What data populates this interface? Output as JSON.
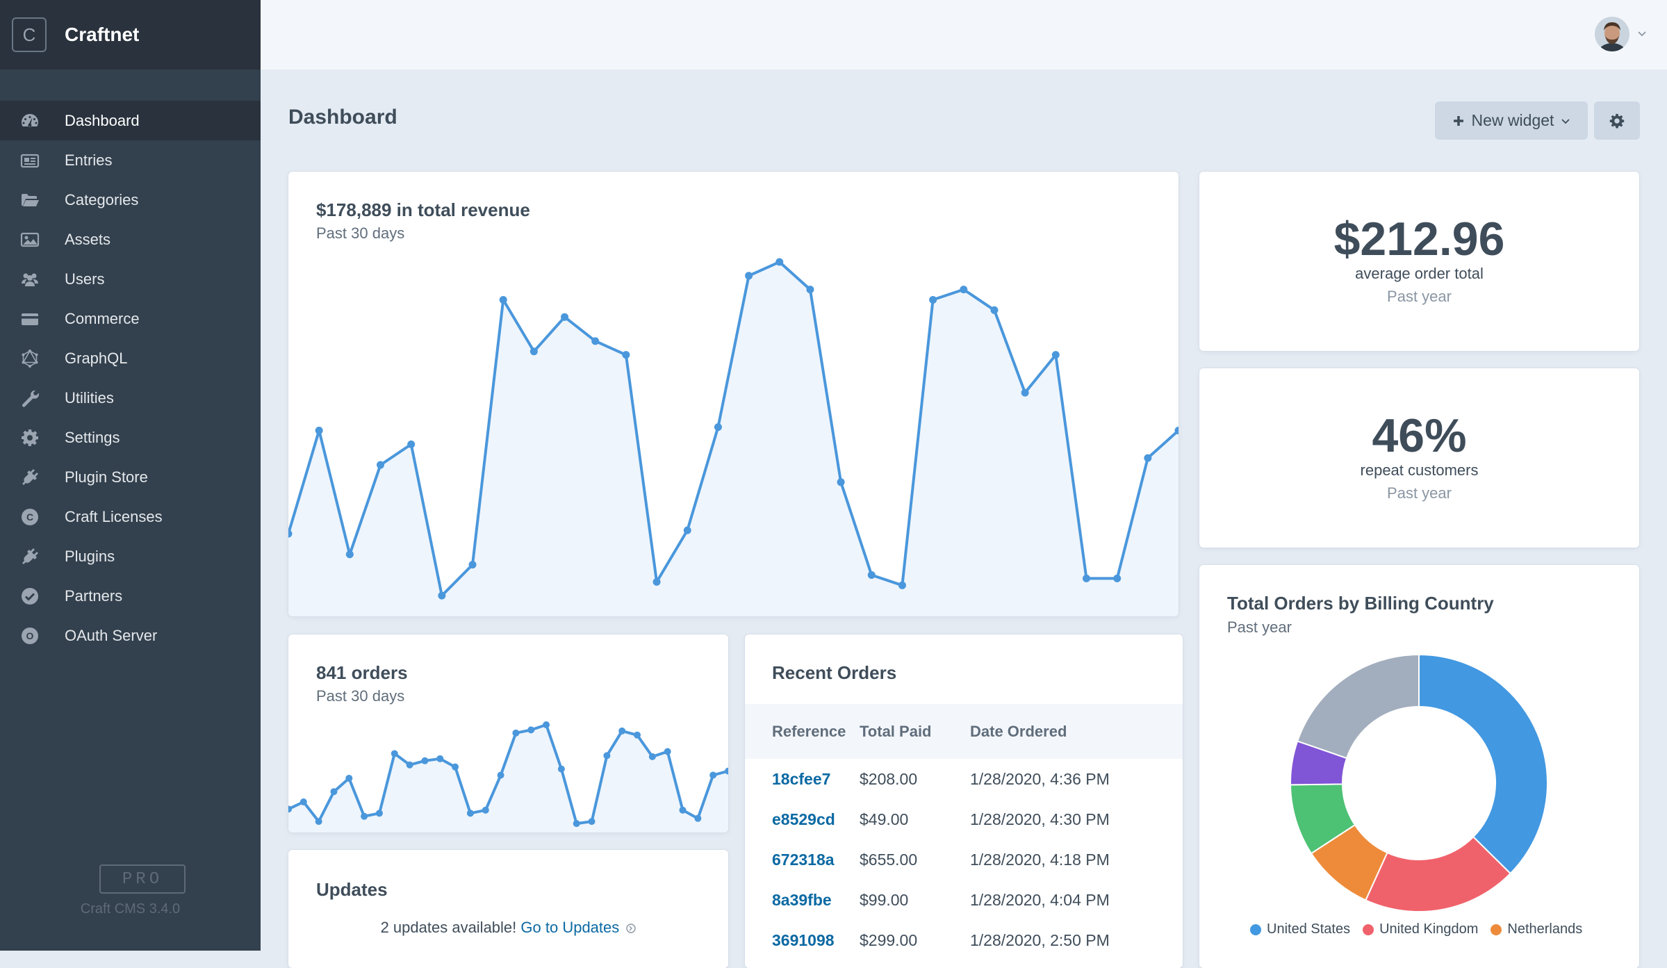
{
  "app": {
    "name": "Craftnet",
    "logo_letter": "C",
    "edition_badge": "PRO",
    "version": "Craft CMS 3.4.0"
  },
  "sidebar": {
    "items": [
      {
        "label": "Dashboard",
        "icon": "gauge-icon",
        "active": true
      },
      {
        "label": "Entries",
        "icon": "newspaper-icon"
      },
      {
        "label": "Categories",
        "icon": "folder-open-icon"
      },
      {
        "label": "Assets",
        "icon": "image-icon"
      },
      {
        "label": "Users",
        "icon": "users-icon"
      },
      {
        "label": "Commerce",
        "icon": "credit-card-icon"
      },
      {
        "label": "GraphQL",
        "icon": "graphql-icon"
      },
      {
        "label": "Utilities",
        "icon": "wrench-icon"
      },
      {
        "label": "Settings",
        "icon": "gear-icon"
      },
      {
        "label": "Plugin Store",
        "icon": "plug-icon"
      },
      {
        "label": "Craft Licenses",
        "icon": "craft-c-icon"
      },
      {
        "label": "Plugins",
        "icon": "plug-icon"
      },
      {
        "label": "Partners",
        "icon": "check-circle-icon"
      },
      {
        "label": "OAuth Server",
        "icon": "oauth-o-icon"
      }
    ]
  },
  "header": {
    "title": "Dashboard",
    "new_widget_label": "New widget",
    "new_widget_icon": "plus-icon",
    "settings_icon": "gear-icon"
  },
  "widgets": {
    "revenue": {
      "title": "$178,889 in total revenue",
      "period": "Past 30 days"
    },
    "avg_order": {
      "value": "$212.96",
      "label": "average order total",
      "period": "Past year"
    },
    "repeat": {
      "value": "46%",
      "label": "repeat customers",
      "period": "Past year"
    },
    "orders": {
      "title": "841 orders",
      "period": "Past 30 days"
    },
    "recent_orders": {
      "title": "Recent Orders",
      "columns": [
        "Reference",
        "Total Paid",
        "Date Ordered"
      ],
      "rows": [
        {
          "ref": "18cfee7",
          "total": "$208.00",
          "date": "1/28/2020, 4:36 PM"
        },
        {
          "ref": "e8529cd",
          "total": "$49.00",
          "date": "1/28/2020, 4:30 PM"
        },
        {
          "ref": "672318a",
          "total": "$655.00",
          "date": "1/28/2020, 4:18 PM"
        },
        {
          "ref": "8a39fbe",
          "total": "$99.00",
          "date": "1/28/2020, 4:04 PM"
        },
        {
          "ref": "3691098",
          "total": "$299.00",
          "date": "1/28/2020, 2:50 PM"
        }
      ]
    },
    "updates": {
      "title": "Updates",
      "message": "2 updates available!",
      "link": "Go to Updates"
    },
    "billing_country": {
      "title": "Total Orders by Billing Country",
      "period": "Past year"
    }
  },
  "colors": {
    "line": "#4a97dc",
    "area": "#eef5fc",
    "sidebar": "#33404d",
    "link": "#0b69a3"
  },
  "chart_data": [
    {
      "type": "area",
      "series": [
        {
          "values": [
            0.21,
            0.51,
            0.15,
            0.41,
            0.47,
            0.03,
            0.12,
            0.89,
            0.74,
            0.84,
            0.77,
            0.73,
            0.07,
            0.22,
            0.52,
            0.96,
            1.0,
            0.92,
            0.36,
            0.09,
            0.06,
            0.89,
            0.92,
            0.86,
            0.62,
            0.73,
            0.08,
            0.08,
            0.43,
            0.51
          ]
        }
      ],
      "y_units": "relative (no axis shown)"
    },
    {
      "type": "area",
      "series": [
        {
          "values": [
            0.18,
            0.25,
            0.06,
            0.35,
            0.48,
            0.11,
            0.14,
            0.72,
            0.61,
            0.65,
            0.67,
            0.59,
            0.14,
            0.17,
            0.51,
            0.92,
            0.95,
            1.0,
            0.57,
            0.04,
            0.06,
            0.7,
            0.94,
            0.9,
            0.69,
            0.74,
            0.17,
            0.09,
            0.51,
            0.55
          ]
        }
      ],
      "y_units": "relative (no axis shown)"
    },
    {
      "type": "pie",
      "title": "Total Orders by Billing Country",
      "subtitle": "Past year",
      "slices": [
        {
          "label": "United States",
          "value": 37.4,
          "color": "#4298e1"
        },
        {
          "label": "United Kingdom",
          "value": 19.4,
          "color": "#f0626b"
        },
        {
          "label": "Netherlands",
          "value": 9.0,
          "color": "#ee8b3a"
        },
        {
          "label": "",
          "value": 9.0,
          "color": "#4dc174"
        },
        {
          "label": "",
          "value": 5.5,
          "color": "#8055d6"
        },
        {
          "label": "",
          "value": 19.7,
          "color": "#a2aebe"
        }
      ]
    }
  ]
}
